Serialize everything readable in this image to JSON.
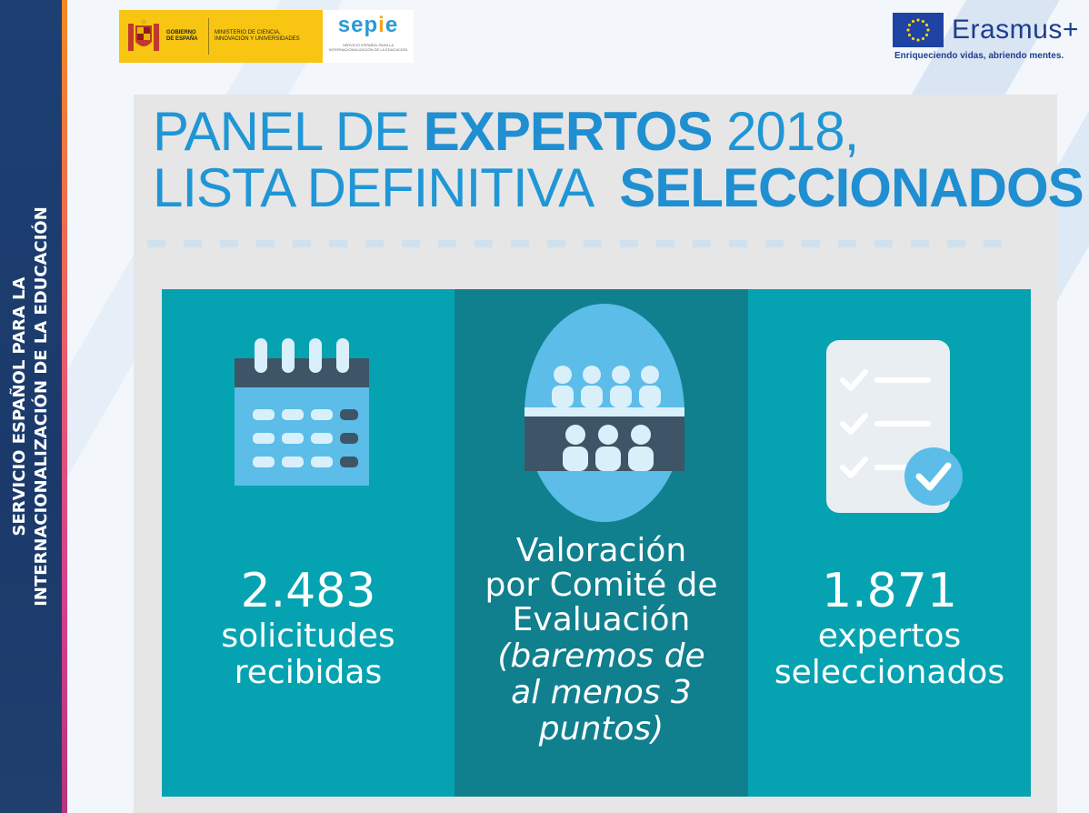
{
  "sidebar": {
    "line1": "SERVICIO ESPAÑOL PARA LA",
    "line2": "INTERNACIONALIZACIÓN DE LA EDUCACIÓN"
  },
  "header": {
    "gov_label": "GOBIERNO DE ESPAÑA",
    "ministry_label": "MINISTERIO DE CIENCIA, INNOVACIÓN Y UNIVERSIDADES",
    "sepie_logo": "sepie",
    "sepie_subtitle": "SERVICIO ESPAÑOL PARA LA INTERNACIONALIZACIÓN DE LA EDUCACIÓN",
    "erasmus_name": "Erasmus+",
    "erasmus_tagline": "Enriqueciendo vidas, abriendo mentes."
  },
  "infographic": {
    "title_line1_light": "PANEL DE ",
    "title_line1_bold": "EXPERTOS",
    "title_line1_end": " 2018,",
    "title_line2_light": "LISTA DEFINITIVA  ",
    "title_line2_bold": "SELECCIONADOS",
    "col1": {
      "number": "2.483",
      "line1": "solicitudes",
      "line2": "recibidas"
    },
    "col2": {
      "line1": "Valoración",
      "line2": "por Comité de",
      "line3": "Evaluación",
      "note1": "(baremos de",
      "note2": "al menos 3",
      "note3": "puntos)"
    },
    "col3": {
      "number": "1.871",
      "line1": "expertos",
      "line2": "seleccionados"
    }
  },
  "colors": {
    "banner": "#1b3a6b",
    "title_blue": "#1f96d6",
    "teal": "#05a3b2",
    "teal_dark": "#10808e"
  },
  "icons": [
    "calendar-icon",
    "committee-icon",
    "checklist-icon",
    "eu-flag-icon",
    "spain-shield-icon"
  ]
}
